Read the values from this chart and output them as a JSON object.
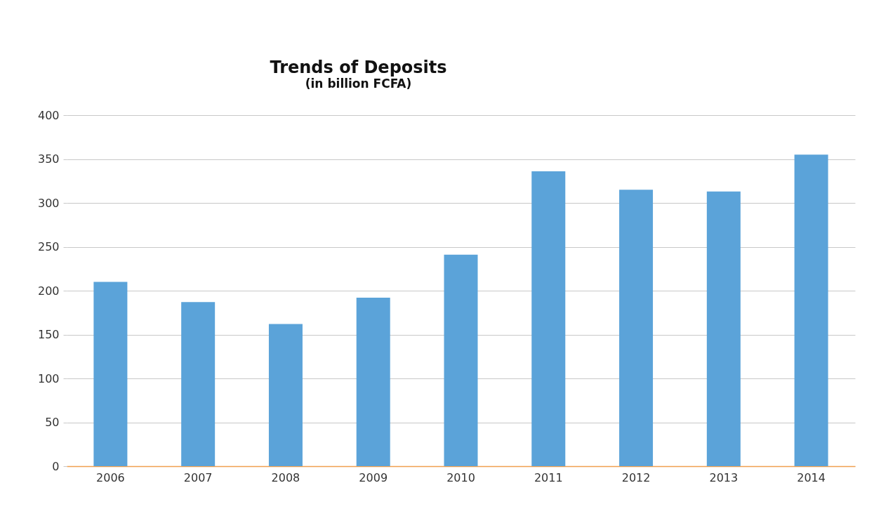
{
  "chart_data": {
    "type": "bar",
    "title": "Trends of Deposits",
    "subtitle": "(in billion FCFA)",
    "categories": [
      "2006",
      "2007",
      "2008",
      "2009",
      "2010",
      "2011",
      "2012",
      "2013",
      "2014"
    ],
    "values": [
      210,
      187,
      162,
      192,
      241,
      336,
      315,
      313,
      355
    ],
    "color": "#5ba3d9",
    "ylim": [
      0,
      400
    ],
    "yticks": [
      0,
      50,
      100,
      150,
      200,
      250,
      300,
      350,
      400
    ],
    "grid": "y"
  }
}
